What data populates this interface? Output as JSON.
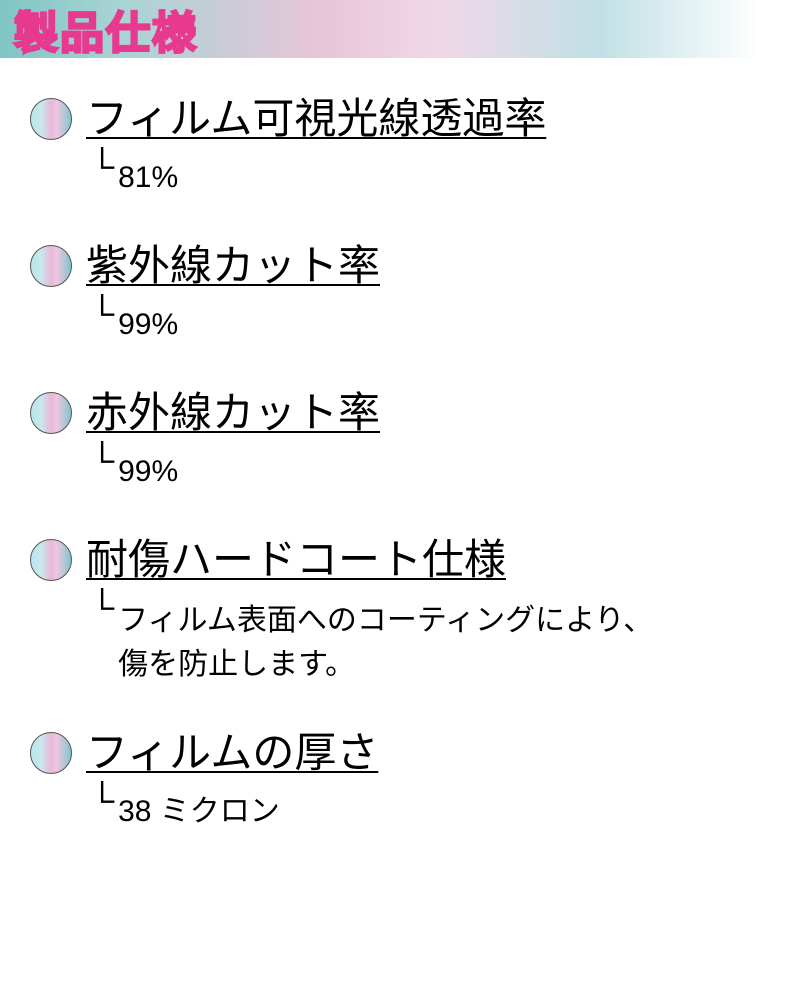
{
  "header": {
    "title": "製品仕様"
  },
  "colors": {
    "accent_pink": "#e6398f",
    "gradient_teal": "#7fc5c5",
    "gradient_pink": "#e8c5d8",
    "text": "#000000",
    "title_fill": "#ffffff"
  },
  "specs": [
    {
      "label": "フィルム可視光線透過率",
      "value": "81%"
    },
    {
      "label": "紫外線カット率",
      "value": "99%"
    },
    {
      "label": "赤外線カット率",
      "value": "99%"
    },
    {
      "label": "耐傷ハードコート仕様",
      "value": "フィルム表面へのコーティングにより、\n傷を防止します。"
    },
    {
      "label": "フィルムの厚さ",
      "value": "38 ミクロン"
    }
  ]
}
